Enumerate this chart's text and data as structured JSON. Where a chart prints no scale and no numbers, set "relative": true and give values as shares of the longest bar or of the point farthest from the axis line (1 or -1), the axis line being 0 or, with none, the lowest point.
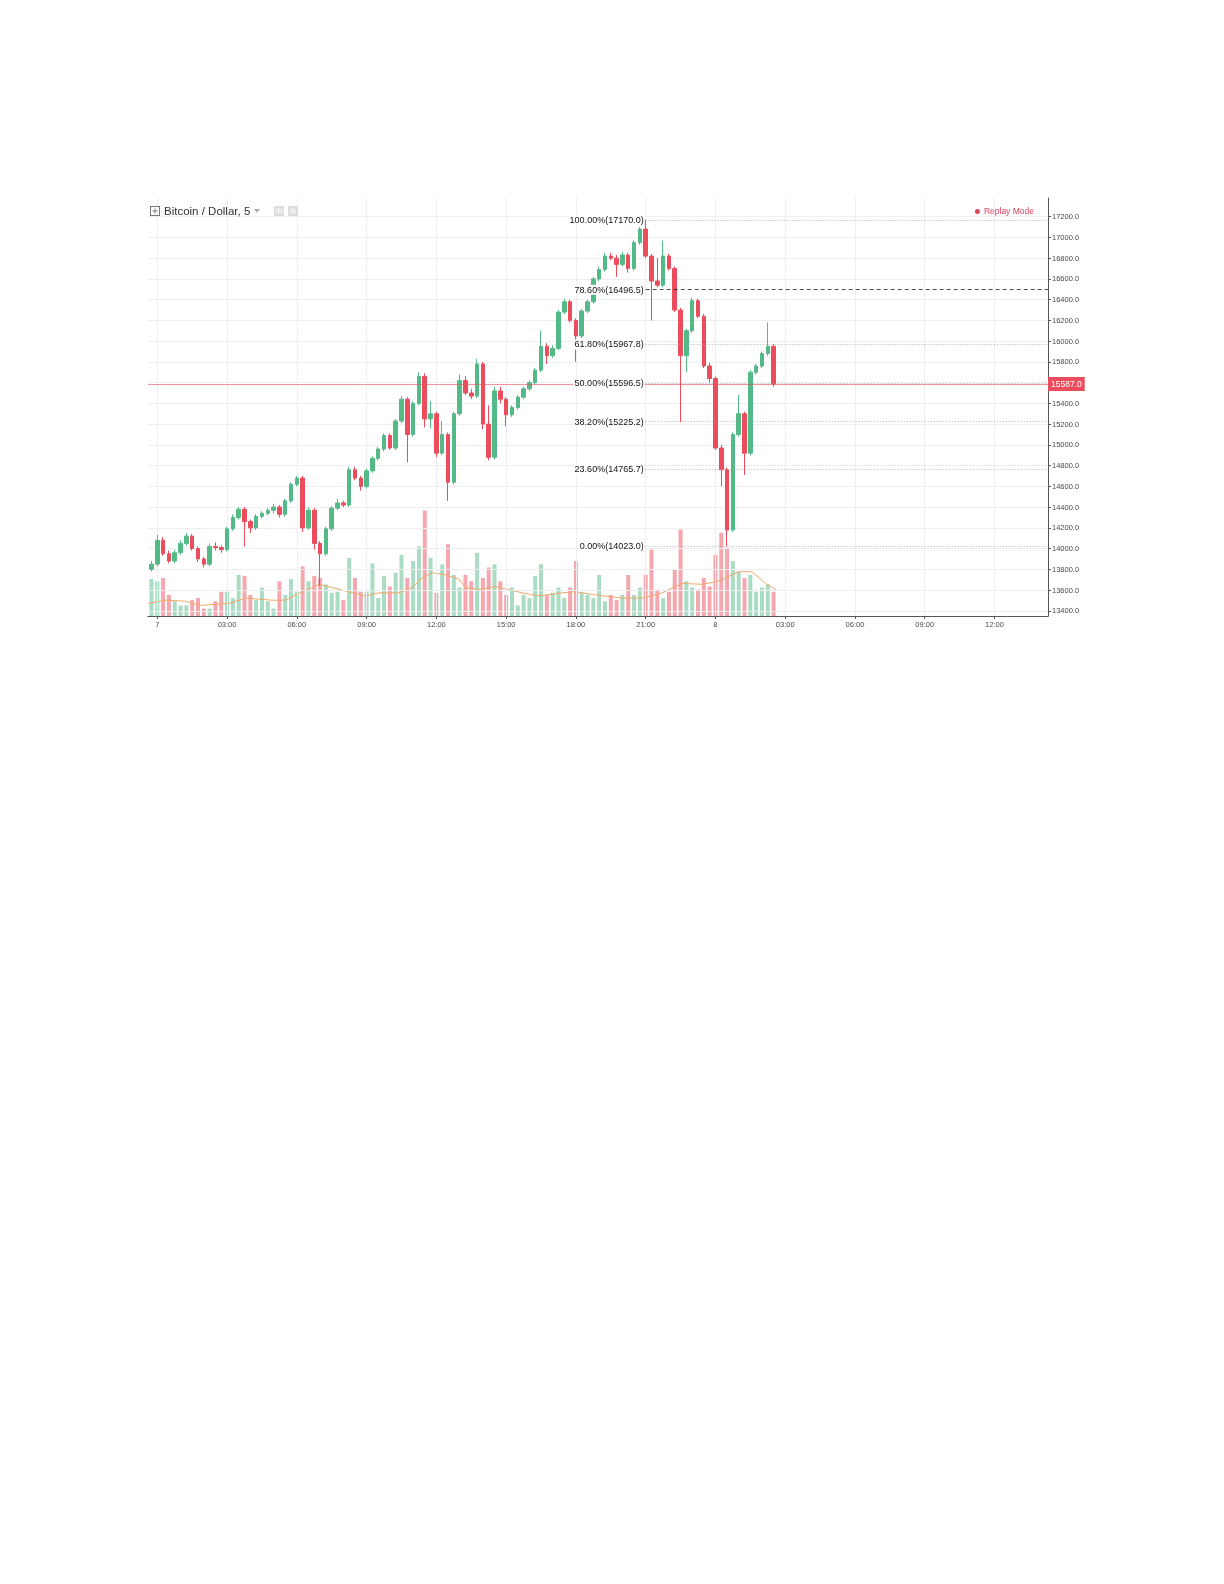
{
  "chart_data": [
    {
      "type": "candlestick",
      "title": "Bitcoin / Dollar, 5",
      "annotations": [
        "Replay Mode"
      ],
      "x": [
        "--12-06T23:45",
        "--12-07T00:00",
        "--12-07T00:15",
        "--12-07T00:30",
        "--12-07T00:45",
        "--12-07T01:00",
        "--12-07T01:15",
        "--12-07T01:30",
        "--12-07T01:45",
        "--12-07T02:00",
        "--12-07T02:15",
        "--12-07T02:30",
        "--12-07T02:45",
        "--12-07T03:00",
        "--12-07T03:15",
        "--12-07T03:30",
        "--12-07T03:45",
        "--12-07T04:00",
        "--12-07T04:15",
        "--12-07T04:30",
        "--12-07T04:45",
        "--12-07T05:00",
        "--12-07T05:15",
        "--12-07T05:30",
        "--12-07T05:45",
        "--12-07T06:00",
        "--12-07T06:15",
        "--12-07T06:30",
        "--12-07T06:45",
        "--12-07T07:00",
        "--12-07T07:15",
        "--12-07T07:30",
        "--12-07T07:45",
        "--12-07T08:00",
        "--12-07T08:15",
        "--12-07T08:30",
        "--12-07T08:45",
        "--12-07T09:00",
        "--12-07T09:15",
        "--12-07T09:30",
        "--12-07T09:45",
        "--12-07T10:00",
        "--12-07T10:15",
        "--12-07T10:30",
        "--12-07T10:45",
        "--12-07T11:00",
        "--12-07T11:15",
        "--12-07T11:30",
        "--12-07T11:45",
        "--12-07T12:00",
        "--12-07T12:15",
        "--12-07T12:30",
        "--12-07T12:45",
        "--12-07T13:00",
        "--12-07T13:15",
        "--12-07T13:30",
        "--12-07T13:45",
        "--12-07T14:00",
        "--12-07T14:15",
        "--12-07T14:30",
        "--12-07T14:45",
        "--12-07T15:00",
        "--12-07T15:15",
        "--12-07T15:30",
        "--12-07T15:45",
        "--12-07T16:00",
        "--12-07T16:15",
        "--12-07T16:30",
        "--12-07T16:45",
        "--12-07T17:00",
        "--12-07T17:15",
        "--12-07T17:30",
        "--12-07T17:45",
        "--12-07T18:00",
        "--12-07T18:15",
        "--12-07T18:30",
        "--12-07T18:45",
        "--12-07T19:00",
        "--12-07T19:15",
        "--12-07T19:30",
        "--12-07T19:45",
        "--12-07T20:00",
        "--12-07T20:15",
        "--12-07T20:30",
        "--12-07T20:45",
        "--12-07T21:00",
        "--12-07T21:15",
        "--12-07T21:30",
        "--12-07T21:45",
        "--12-07T22:00",
        "--12-07T22:15",
        "--12-07T22:30",
        "--12-07T22:45",
        "--12-07T23:00",
        "--12-07T23:15",
        "--12-07T23:30",
        "--12-07T23:45",
        "--12-08T00:00",
        "--12-08T00:15",
        "--12-08T00:30",
        "--12-08T00:45",
        "--12-08T01:00",
        "--12-08T01:15",
        "--12-08T01:30",
        "--12-08T01:45",
        "--12-08T02:00",
        "--12-08T02:15",
        "--12-08T02:30"
      ],
      "ohlc": [
        [
          13800,
          13880,
          13780,
          13850
        ],
        [
          13850,
          14130,
          13830,
          14080
        ],
        [
          14080,
          14110,
          13930,
          13950
        ],
        [
          13950,
          13980,
          13860,
          13880
        ],
        [
          13880,
          13990,
          13860,
          13960
        ],
        [
          13960,
          14080,
          13940,
          14050
        ],
        [
          14050,
          14150,
          14030,
          14120
        ],
        [
          14120,
          14140,
          13980,
          14000
        ],
        [
          14000,
          14020,
          13870,
          13900
        ],
        [
          13900,
          13920,
          13820,
          13850
        ],
        [
          13850,
          14050,
          13830,
          14020
        ],
        [
          14020,
          14060,
          13980,
          14010
        ],
        [
          14010,
          14030,
          13960,
          13990
        ],
        [
          13990,
          14210,
          13970,
          14190
        ],
        [
          14190,
          14330,
          14170,
          14300
        ],
        [
          14300,
          14400,
          14280,
          14380
        ],
        [
          14380,
          14400,
          14020,
          14260
        ],
        [
          14260,
          14280,
          14150,
          14200
        ],
        [
          14200,
          14330,
          14180,
          14310
        ],
        [
          14310,
          14360,
          14290,
          14340
        ],
        [
          14340,
          14390,
          14320,
          14370
        ],
        [
          14370,
          14430,
          14340,
          14400
        ],
        [
          14400,
          14420,
          14300,
          14330
        ],
        [
          14330,
          14480,
          14310,
          14460
        ],
        [
          14460,
          14640,
          14440,
          14620
        ],
        [
          14620,
          14700,
          14600,
          14680
        ],
        [
          14680,
          14700,
          14160,
          14200
        ],
        [
          14200,
          14400,
          14180,
          14370
        ],
        [
          14370,
          14390,
          13990,
          14050
        ],
        [
          14050,
          14070,
          13640,
          13950
        ],
        [
          13950,
          14210,
          13930,
          14190
        ],
        [
          14190,
          14410,
          14170,
          14390
        ],
        [
          14390,
          14480,
          14370,
          14440
        ],
        [
          14440,
          14460,
          14400,
          14420
        ],
        [
          14420,
          14790,
          14400,
          14760
        ],
        [
          14760,
          14790,
          14660,
          14680
        ],
        [
          14680,
          14700,
          14560,
          14600
        ],
        [
          14600,
          14770,
          14580,
          14750
        ],
        [
          14750,
          14890,
          14730,
          14870
        ],
        [
          14870,
          14980,
          14850,
          14960
        ],
        [
          14960,
          15110,
          14940,
          15090
        ],
        [
          15090,
          15110,
          14950,
          14970
        ],
        [
          14970,
          15250,
          14950,
          15230
        ],
        [
          15230,
          15470,
          15210,
          15440
        ],
        [
          15440,
          15460,
          14830,
          15100
        ],
        [
          15100,
          15420,
          15080,
          15400
        ],
        [
          15400,
          15700,
          15380,
          15660
        ],
        [
          15660,
          15690,
          15170,
          15250
        ],
        [
          15250,
          15420,
          15160,
          15300
        ],
        [
          15300,
          15320,
          14880,
          14920
        ],
        [
          14920,
          15230,
          14900,
          15100
        ],
        [
          15100,
          15120,
          14460,
          14640
        ],
        [
          14640,
          15320,
          14620,
          15300
        ],
        [
          15300,
          15680,
          15280,
          15620
        ],
        [
          15620,
          15660,
          15480,
          15500
        ],
        [
          15500,
          15540,
          15440,
          15470
        ],
        [
          15470,
          15830,
          15450,
          15780
        ],
        [
          15780,
          15800,
          15150,
          15200
        ],
        [
          15200,
          15380,
          14850,
          14880
        ],
        [
          14880,
          15560,
          14860,
          15520
        ],
        [
          15520,
          15560,
          15400,
          15440
        ],
        [
          15440,
          15460,
          15180,
          15290
        ],
        [
          15290,
          15380,
          15270,
          15360
        ],
        [
          15360,
          15480,
          15340,
          15460
        ],
        [
          15460,
          15560,
          15440,
          15540
        ],
        [
          15540,
          15620,
          15520,
          15600
        ],
        [
          15600,
          15740,
          15580,
          15720
        ],
        [
          15720,
          16100,
          15700,
          15950
        ],
        [
          15950,
          15980,
          15780,
          15860
        ],
        [
          15860,
          15960,
          15840,
          15930
        ],
        [
          15930,
          16300,
          15910,
          16280
        ],
        [
          16280,
          16410,
          16260,
          16380
        ],
        [
          16380,
          16400,
          16180,
          16200
        ],
        [
          16200,
          16220,
          15800,
          16050
        ],
        [
          16050,
          16310,
          16030,
          16290
        ],
        [
          16290,
          16400,
          16270,
          16380
        ],
        [
          16380,
          16620,
          16360,
          16600
        ],
        [
          16600,
          16720,
          16580,
          16690
        ],
        [
          16690,
          16850,
          16670,
          16820
        ],
        [
          16820,
          16850,
          16780,
          16800
        ],
        [
          16800,
          16830,
          16620,
          16740
        ],
        [
          16740,
          16860,
          16720,
          16830
        ],
        [
          16830,
          16850,
          16660,
          16700
        ],
        [
          16700,
          16970,
          16680,
          16950
        ],
        [
          16950,
          17100,
          16930,
          17080
        ],
        [
          17080,
          17170,
          16800,
          16820
        ],
        [
          16820,
          16840,
          16200,
          16580
        ],
        [
          16580,
          16800,
          16520,
          16540
        ],
        [
          16540,
          16970,
          16520,
          16820
        ],
        [
          16820,
          16840,
          16680,
          16700
        ],
        [
          16700,
          16720,
          16280,
          16300
        ],
        [
          16300,
          16320,
          15220,
          15860
        ],
        [
          15860,
          16120,
          15700,
          16100
        ],
        [
          16100,
          16420,
          16080,
          16390
        ],
        [
          16390,
          16410,
          16220,
          16240
        ],
        [
          16240,
          16260,
          15740,
          15760
        ],
        [
          15760,
          15790,
          15600,
          15640
        ],
        [
          15640,
          15660,
          14950,
          14970
        ],
        [
          14970,
          15000,
          14600,
          14760
        ],
        [
          14760,
          14780,
          14023,
          14180
        ],
        [
          14180,
          15120,
          14160,
          15100
        ],
        [
          15100,
          15480,
          15080,
          15300
        ],
        [
          15300,
          15320,
          14710,
          14920
        ],
        [
          14920,
          15720,
          14900,
          15700
        ],
        [
          15700,
          15780,
          15680,
          15760
        ],
        [
          15760,
          15900,
          15740,
          15880
        ],
        [
          15880,
          16180,
          15860,
          15950
        ],
        [
          15950,
          15970,
          15560,
          15587
        ]
      ],
      "colors": [
        "#53b987",
        "#53b987",
        "#eb4d5c",
        "#eb4d5c",
        "#53b987",
        "#53b987",
        "#53b987",
        "#eb4d5c",
        "#eb4d5c",
        "#eb4d5c",
        "#53b987",
        "#eb4d5c",
        "#eb4d5c",
        "#53b987",
        "#53b987",
        "#53b987",
        "#eb4d5c",
        "#eb4d5c",
        "#53b987",
        "#53b987",
        "#53b987",
        "#53b987",
        "#eb4d5c",
        "#53b987",
        "#53b987",
        "#53b987",
        "#eb4d5c",
        "#53b987",
        "#eb4d5c",
        "#eb4d5c",
        "#53b987",
        "#53b987",
        "#53b987",
        "#eb4d5c",
        "#53b987",
        "#eb4d5c",
        "#eb4d5c",
        "#53b987",
        "#53b987",
        "#53b987",
        "#53b987",
        "#eb4d5c",
        "#53b987",
        "#53b987",
        "#eb4d5c",
        "#53b987",
        "#53b987",
        "#eb4d5c",
        "#53b987",
        "#eb4d5c",
        "#53b987",
        "#eb4d5c",
        "#53b987",
        "#53b987",
        "#eb4d5c",
        "#eb4d5c",
        "#53b987",
        "#eb4d5c",
        "#eb4d5c",
        "#53b987",
        "#eb4d5c",
        "#eb4d5c",
        "#53b987",
        "#53b987",
        "#53b987",
        "#53b987",
        "#53b987",
        "#53b987",
        "#eb4d5c",
        "#53b987",
        "#53b987",
        "#53b987",
        "#eb4d5c",
        "#eb4d5c",
        "#53b987",
        "#53b987",
        "#53b987",
        "#53b987",
        "#53b987",
        "#eb4d5c",
        "#eb4d5c",
        "#53b987",
        "#eb4d5c",
        "#53b987",
        "#53b987",
        "#eb4d5c",
        "#eb4d5c",
        "#eb4d5c",
        "#53b987",
        "#eb4d5c",
        "#eb4d5c",
        "#eb4d5c",
        "#53b987",
        "#53b987",
        "#eb4d5c",
        "#eb4d5c",
        "#eb4d5c",
        "#eb4d5c",
        "#eb4d5c",
        "#eb4d5c",
        "#53b987",
        "#53b987",
        "#eb4d5c",
        "#53b987",
        "#53b987",
        "#53b987",
        "#53b987",
        "#eb4d5c"
      ],
      "xlim": [
        "--12-06T23:36",
        "--12-08T14:18"
      ],
      "xticks": [
        {
          "value": "--12-07T00:00",
          "label": "7"
        },
        {
          "value": "--12-07T03:00",
          "label": "03:00"
        },
        {
          "value": "--12-07T06:00",
          "label": "06:00"
        },
        {
          "value": "--12-07T09:00",
          "label": "09:00"
        },
        {
          "value": "--12-07T12:00",
          "label": "12:00"
        },
        {
          "value": "--12-07T15:00",
          "label": "15:00"
        },
        {
          "value": "--12-07T18:00",
          "label": "18:00"
        },
        {
          "value": "--12-07T21:00",
          "label": "21:00"
        },
        {
          "value": "--12-08T00:00",
          "label": "8"
        },
        {
          "value": "--12-08T03:00",
          "label": "03:00"
        },
        {
          "value": "--12-08T06:00",
          "label": "06:00"
        },
        {
          "value": "--12-08T09:00",
          "label": "09:00"
        },
        {
          "value": "--12-08T12:00",
          "label": "12:00"
        }
      ],
      "ylim": [
        13350,
        17380
      ],
      "yticks": [
        {
          "value": 13400,
          "label": "13400.0"
        },
        {
          "value": 13600,
          "label": "13600.0"
        },
        {
          "value": 13800,
          "label": "13800.0"
        },
        {
          "value": 14000,
          "label": "14000.0"
        },
        {
          "value": 14200,
          "label": "14200.0"
        },
        {
          "value": 14400,
          "label": "14400.0"
        },
        {
          "value": 14600,
          "label": "14600.0"
        },
        {
          "value": 14800,
          "label": "14800.0"
        },
        {
          "value": 15000,
          "label": "15000.0"
        },
        {
          "value": 15200,
          "label": "15200.0"
        },
        {
          "value": 15400,
          "label": "15400.0"
        },
        {
          "value": 15600,
          "label": null
        },
        {
          "value": 15800,
          "label": "15800.0"
        },
        {
          "value": 16000,
          "label": "16000.0"
        },
        {
          "value": 16200,
          "label": "16200.0"
        },
        {
          "value": 16400,
          "label": "16400.0"
        },
        {
          "value": 16600,
          "label": "16600.0"
        },
        {
          "value": 16800,
          "label": "16800.0"
        },
        {
          "value": 17000,
          "label": "17000.0"
        },
        {
          "value": 17200,
          "label": "17200.0"
        }
      ],
      "ref_lines": [
        {
          "axis": "y",
          "value": 17170,
          "label": "100.00%(17170.0)",
          "color": "#9a9a9a",
          "line_style": "dotted"
        },
        {
          "axis": "y",
          "value": 16496.5,
          "label": "78.60%(16496.5)",
          "color": "#222222",
          "line_style": "dashed"
        },
        {
          "axis": "y",
          "value": 15967.8,
          "label": "61.80%(15967.8)",
          "color": "#9a9a9a",
          "line_style": "dotted"
        },
        {
          "axis": "y",
          "value": 15596.5,
          "label": "50.00%(15596.5)",
          "color": "#9a9a9a",
          "line_style": "dotted"
        },
        {
          "axis": "y",
          "value": 15225.2,
          "label": "38.20%(15225.2)",
          "color": "#9a9a9a",
          "line_style": "dotted"
        },
        {
          "axis": "y",
          "value": 14765.7,
          "label": "23.60%(14765.7)",
          "color": "#9a9a9a",
          "line_style": "dotted"
        },
        {
          "axis": "y",
          "value": 14023,
          "label": "0.00%(14023.0)",
          "color": "#9a9a9a",
          "line_style": "dotted"
        },
        {
          "axis": "y",
          "value": 15587,
          "label": "15587.0",
          "color": "#eb4d5c",
          "line_style": "solid"
        }
      ],
      "grid": true
    },
    {
      "type": "bar",
      "relative": true,
      "tick_labels": false,
      "xlim": [
        "--12-06T23:36",
        "--12-08T14:18"
      ],
      "xticks": [
        {
          "value": "--12-07T00:00",
          "label": "7"
        },
        {
          "value": "--12-07T03:00",
          "label": "03:00"
        },
        {
          "value": "--12-07T06:00",
          "label": "06:00"
        },
        {
          "value": "--12-07T09:00",
          "label": "09:00"
        },
        {
          "value": "--12-07T12:00",
          "label": "12:00"
        },
        {
          "value": "--12-07T15:00",
          "label": "15:00"
        },
        {
          "value": "--12-07T18:00",
          "label": "18:00"
        },
        {
          "value": "--12-07T21:00",
          "label": "21:00"
        },
        {
          "value": "--12-08T00:00",
          "label": "8"
        },
        {
          "value": "--12-08T03:00",
          "label": "03:00"
        },
        {
          "value": "--12-08T06:00",
          "label": "06:00"
        },
        {
          "value": "--12-08T09:00",
          "label": "09:00"
        },
        {
          "value": "--12-08T12:00",
          "label": "12:00"
        }
      ],
      "x": [
        "--12-06T23:45",
        "--12-07T00:00",
        "--12-07T00:15",
        "--12-07T00:30",
        "--12-07T00:45",
        "--12-07T01:00",
        "--12-07T01:15",
        "--12-07T01:30",
        "--12-07T01:45",
        "--12-07T02:00",
        "--12-07T02:15",
        "--12-07T02:30",
        "--12-07T02:45",
        "--12-07T03:00",
        "--12-07T03:15",
        "--12-07T03:30",
        "--12-07T03:45",
        "--12-07T04:00",
        "--12-07T04:15",
        "--12-07T04:30",
        "--12-07T04:45",
        "--12-07T05:00",
        "--12-07T05:15",
        "--12-07T05:30",
        "--12-07T05:45",
        "--12-07T06:00",
        "--12-07T06:15",
        "--12-07T06:30",
        "--12-07T06:45",
        "--12-07T07:00",
        "--12-07T07:15",
        "--12-07T07:30",
        "--12-07T07:45",
        "--12-07T08:00",
        "--12-07T08:15",
        "--12-07T08:30",
        "--12-07T08:45",
        "--12-07T09:00",
        "--12-07T09:15",
        "--12-07T09:30",
        "--12-07T09:45",
        "--12-07T10:00",
        "--12-07T10:15",
        "--12-07T10:30",
        "--12-07T10:45",
        "--12-07T11:00",
        "--12-07T11:15",
        "--12-07T11:30",
        "--12-07T11:45",
        "--12-07T12:00",
        "--12-07T12:15",
        "--12-07T12:30",
        "--12-07T12:45",
        "--12-07T13:00",
        "--12-07T13:15",
        "--12-07T13:30",
        "--12-07T13:45",
        "--12-07T14:00",
        "--12-07T14:15",
        "--12-07T14:30",
        "--12-07T14:45",
        "--12-07T15:00",
        "--12-07T15:15",
        "--12-07T15:30",
        "--12-07T15:45",
        "--12-07T16:00",
        "--12-07T16:15",
        "--12-07T16:30",
        "--12-07T16:45",
        "--12-07T17:00",
        "--12-07T17:15",
        "--12-07T17:30",
        "--12-07T17:45",
        "--12-07T18:00",
        "--12-07T18:15",
        "--12-07T18:30",
        "--12-07T18:45",
        "--12-07T19:00",
        "--12-07T19:15",
        "--12-07T19:30",
        "--12-07T19:45",
        "--12-07T20:00",
        "--12-07T20:15",
        "--12-07T20:30",
        "--12-07T20:45",
        "--12-07T21:00",
        "--12-07T21:15",
        "--12-07T21:30",
        "--12-07T21:45",
        "--12-07T22:00",
        "--12-07T22:15",
        "--12-07T22:30",
        "--12-07T22:45",
        "--12-07T23:00",
        "--12-07T23:15",
        "--12-07T23:30",
        "--12-07T23:45",
        "--12-08T00:00",
        "--12-08T00:15",
        "--12-08T00:30",
        "--12-08T00:45",
        "--12-08T01:00",
        "--12-08T01:15",
        "--12-08T01:30",
        "--12-08T01:45",
        "--12-08T02:00",
        "--12-08T02:15",
        "--12-08T02:30"
      ],
      "series": [
        {
          "values": [
            0.35,
            0.33,
            0.36,
            0.2,
            0.14,
            0.1,
            0.1,
            0.15,
            0.17,
            0.07,
            0.07,
            0.14,
            0.23,
            0.23,
            0.17,
            0.39,
            0.38,
            0.2,
            0.15,
            0.27,
            0.14,
            0.07,
            0.33,
            0.2,
            0.35,
            0.23,
            0.47,
            0.33,
            0.38,
            0.36,
            0.3,
            0.22,
            0.23,
            0.15,
            0.55,
            0.36,
            0.23,
            0.23,
            0.5,
            0.17,
            0.38,
            0.28,
            0.41,
            0.58,
            0.36,
            0.52,
            0.66,
            1,
            0.55,
            0.22,
            0.49,
            0.68,
            0.39,
            0.27,
            0.39,
            0.33,
            0.6,
            0.36,
            0.46,
            0.49,
            0.33,
            0.2,
            0.27,
            0.1,
            0.2,
            0.17,
            0.38,
            0.49,
            0.2,
            0.22,
            0.27,
            0.17,
            0.27,
            0.52,
            0.22,
            0.2,
            0.17,
            0.39,
            0.14,
            0.2,
            0.15,
            0.2,
            0.39,
            0.2,
            0.27,
            0.39,
            0.63,
            0.25,
            0.17,
            0.23,
            0.44,
            0.82,
            0.33,
            0.27,
            0.25,
            0.36,
            0.28,
            0.58,
            0.79,
            0.65,
            0.52,
            0.42,
            0.36,
            0.39,
            0.23,
            0.27,
            0.3,
            0.23
          ],
          "colors": [
            "#a9dcc3",
            "#a9dcc3",
            "#f5a7ae",
            "#f5a7ae",
            "#a9dcc3",
            "#a9dcc3",
            "#a9dcc3",
            "#f5a7ae",
            "#f5a7ae",
            "#f5a7ae",
            "#a9dcc3",
            "#f5a7ae",
            "#f5a7ae",
            "#a9dcc3",
            "#a9dcc3",
            "#a9dcc3",
            "#f5a7ae",
            "#f5a7ae",
            "#a9dcc3",
            "#a9dcc3",
            "#a9dcc3",
            "#a9dcc3",
            "#f5a7ae",
            "#a9dcc3",
            "#a9dcc3",
            "#a9dcc3",
            "#f5a7ae",
            "#a9dcc3",
            "#f5a7ae",
            "#f5a7ae",
            "#a9dcc3",
            "#a9dcc3",
            "#a9dcc3",
            "#f5a7ae",
            "#a9dcc3",
            "#f5a7ae",
            "#f5a7ae",
            "#a9dcc3",
            "#a9dcc3",
            "#a9dcc3",
            "#a9dcc3",
            "#f5a7ae",
            "#a9dcc3",
            "#a9dcc3",
            "#f5a7ae",
            "#a9dcc3",
            "#a9dcc3",
            "#f5a7ae",
            "#a9dcc3",
            "#f5a7ae",
            "#a9dcc3",
            "#f5a7ae",
            "#a9dcc3",
            "#a9dcc3",
            "#f5a7ae",
            "#f5a7ae",
            "#a9dcc3",
            "#f5a7ae",
            "#f5a7ae",
            "#a9dcc3",
            "#f5a7ae",
            "#f5a7ae",
            "#a9dcc3",
            "#a9dcc3",
            "#a9dcc3",
            "#a9dcc3",
            "#a9dcc3",
            "#a9dcc3",
            "#f5a7ae",
            "#a9dcc3",
            "#a9dcc3",
            "#a9dcc3",
            "#f5a7ae",
            "#f5a7ae",
            "#a9dcc3",
            "#a9dcc3",
            "#a9dcc3",
            "#a9dcc3",
            "#a9dcc3",
            "#f5a7ae",
            "#f5a7ae",
            "#a9dcc3",
            "#f5a7ae",
            "#a9dcc3",
            "#a9dcc3",
            "#f5a7ae",
            "#f5a7ae",
            "#f5a7ae",
            "#a9dcc3",
            "#f5a7ae",
            "#f5a7ae",
            "#f5a7ae",
            "#a9dcc3",
            "#a9dcc3",
            "#f5a7ae",
            "#f5a7ae",
            "#f5a7ae",
            "#f5a7ae",
            "#f5a7ae",
            "#f5a7ae",
            "#a9dcc3",
            "#a9dcc3",
            "#f5a7ae",
            "#a9dcc3",
            "#a9dcc3",
            "#a9dcc3",
            "#a9dcc3",
            "#f5a7ae"
          ]
        },
        {
          "type": "line",
          "color": "#f0a868",
          "marker": "none",
          "x": [
            "--12-06T23:38",
            "--12-07T00:22",
            "--12-07T01:13",
            "--12-07T01:47",
            "--12-07T03:05",
            "--12-07T03:48",
            "--12-07T04:56",
            "--12-07T05:31",
            "--12-07T06:14",
            "--12-07T06:57",
            "--12-07T07:31",
            "--12-07T08:14",
            "--12-07T08:57",
            "--12-07T09:32",
            "--12-07T10:23",
            "--12-07T10:58",
            "--12-07T11:23",
            "--12-07T11:49",
            "--12-07T12:23",
            "--12-07T12:58",
            "--12-07T13:15",
            "--12-07T13:49",
            "--12-07T14:32",
            "--12-07T15:41",
            "--12-07T16:24",
            "--12-07T17:25",
            "--12-07T17:59",
            "--12-07T18:50",
            "--12-07T19:59",
            "--12-07T20:51",
            "--12-07T21:43",
            "--12-07T22:34",
            "--12-07T23:25",
            "--12-08T00:08",
            "--12-08T01:00",
            "--12-08T01:34",
            "--12-08T02:09",
            "--12-08T02:35"
          ],
          "values": [
            0.12,
            0.15,
            0.14,
            0.1,
            0.12,
            0.17,
            0.15,
            0.15,
            0.23,
            0.3,
            0.27,
            0.23,
            0.19,
            0.22,
            0.22,
            0.27,
            0.36,
            0.41,
            0.39,
            0.35,
            0.27,
            0.25,
            0.28,
            0.22,
            0.19,
            0.22,
            0.23,
            0.2,
            0.17,
            0.17,
            0.22,
            0.31,
            0.3,
            0.33,
            0.42,
            0.42,
            0.31,
            0.25
          ]
        }
      ]
    }
  ]
}
